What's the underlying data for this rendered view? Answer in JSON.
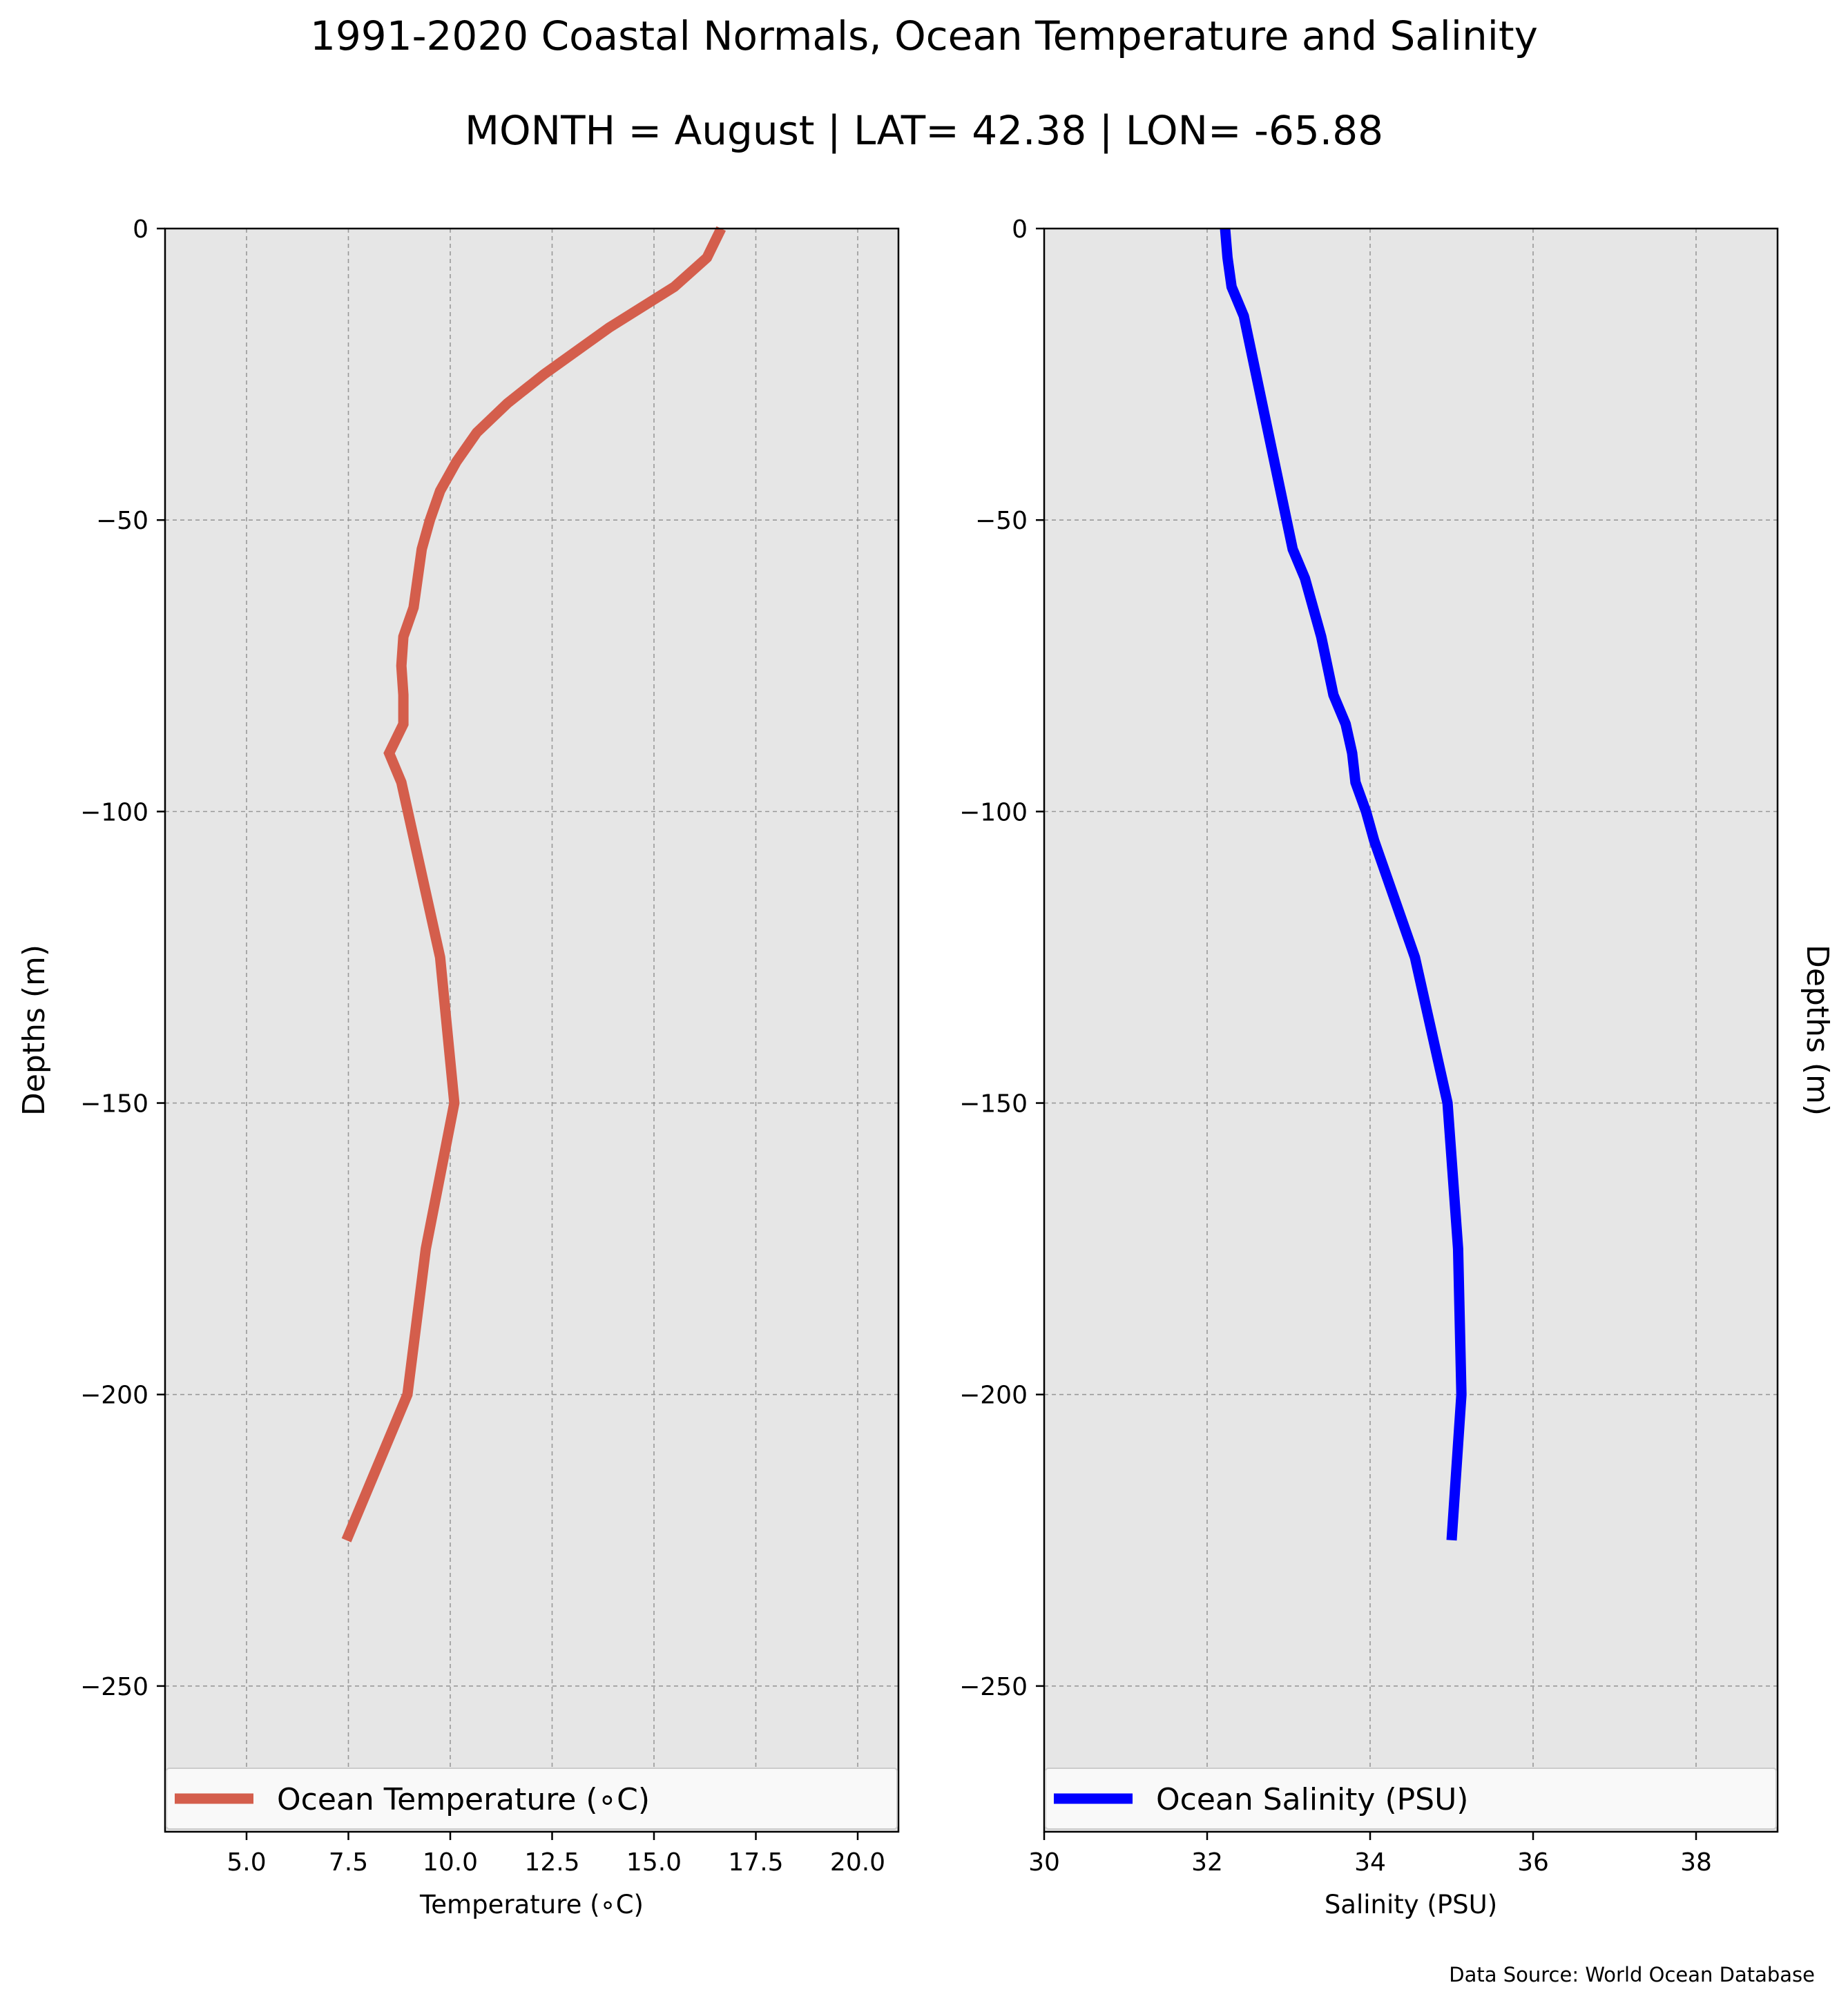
{
  "title": "1991-2020 Coastal Normals, Ocean Temperature and Salinity",
  "subtitle": "MONTH = August | LAT= 42.38 | LON= -65.88",
  "source": "Data Source: World Ocean Database",
  "colors": {
    "panel_bg": "#e6e6e6",
    "grid": "#999999",
    "temperature_line": "#d45e4c",
    "salinity_line": "#0000ff"
  },
  "chart_data": [
    {
      "type": "line",
      "xlabel": "Temperature (∘C)",
      "ylabel": "Depths (m)",
      "xlim": [
        3.0,
        21.0
      ],
      "ylim": [
        -275,
        0
      ],
      "x_ticks": [
        5.0,
        7.5,
        10.0,
        12.5,
        15.0,
        17.5,
        20.0
      ],
      "x_tick_labels": [
        "5.0",
        "7.5",
        "10.0",
        "12.5",
        "15.0",
        "17.5",
        "20.0"
      ],
      "y_ticks": [
        0,
        -50,
        -100,
        -150,
        -200,
        -250
      ],
      "y_tick_labels": [
        "0",
        "−50",
        "−100",
        "−150",
        "−200",
        "−250"
      ],
      "grid": true,
      "legend_position": "lower",
      "series": [
        {
          "name": "Ocean Temperature (∘C)",
          "color": "#d45e4c",
          "x": [
            16.65,
            16.3,
            15.5,
            13.9,
            12.3,
            11.4,
            10.65,
            10.15,
            9.75,
            9.5,
            9.3,
            9.2,
            9.1,
            8.85,
            8.8,
            8.85,
            8.85,
            8.5,
            8.8,
            9.75,
            10.1,
            9.4,
            8.95,
            7.45
          ],
          "y": [
            0,
            -5,
            -10,
            -17,
            -25,
            -30,
            -35,
            -40,
            -45,
            -50,
            -55,
            -60,
            -65,
            -70,
            -75,
            -80,
            -85,
            -90,
            -95,
            -125,
            -150,
            -175,
            -200,
            -225
          ]
        }
      ]
    },
    {
      "type": "line",
      "xlabel": "Salinity (PSU)",
      "ylabel": "Depths (m)",
      "xlim": [
        30,
        39
      ],
      "ylim": [
        -275,
        0
      ],
      "x_ticks": [
        30,
        32,
        34,
        36,
        38
      ],
      "x_tick_labels": [
        "30",
        "32",
        "34",
        "36",
        "38"
      ],
      "y_ticks": [
        0,
        -50,
        -100,
        -150,
        -200,
        -250
      ],
      "y_tick_labels": [
        "0",
        "−50",
        "−100",
        "−150",
        "−200",
        "−250"
      ],
      "grid": true,
      "legend_position": "lower",
      "series": [
        {
          "name": "Ocean Salinity (PSU)",
          "color": "#0000ff",
          "x": [
            32.22,
            32.25,
            32.3,
            32.45,
            32.6,
            32.75,
            32.9,
            33.05,
            33.2,
            33.4,
            33.55,
            33.7,
            33.78,
            33.82,
            33.95,
            34.05,
            34.55,
            34.95,
            35.08,
            35.12,
            35.0
          ],
          "y": [
            0,
            -5,
            -10,
            -15,
            -25,
            -35,
            -45,
            -55,
            -60,
            -70,
            -80,
            -85,
            -90,
            -95,
            -100,
            -105,
            -125,
            -150,
            -175,
            -200,
            -225
          ]
        }
      ]
    }
  ]
}
